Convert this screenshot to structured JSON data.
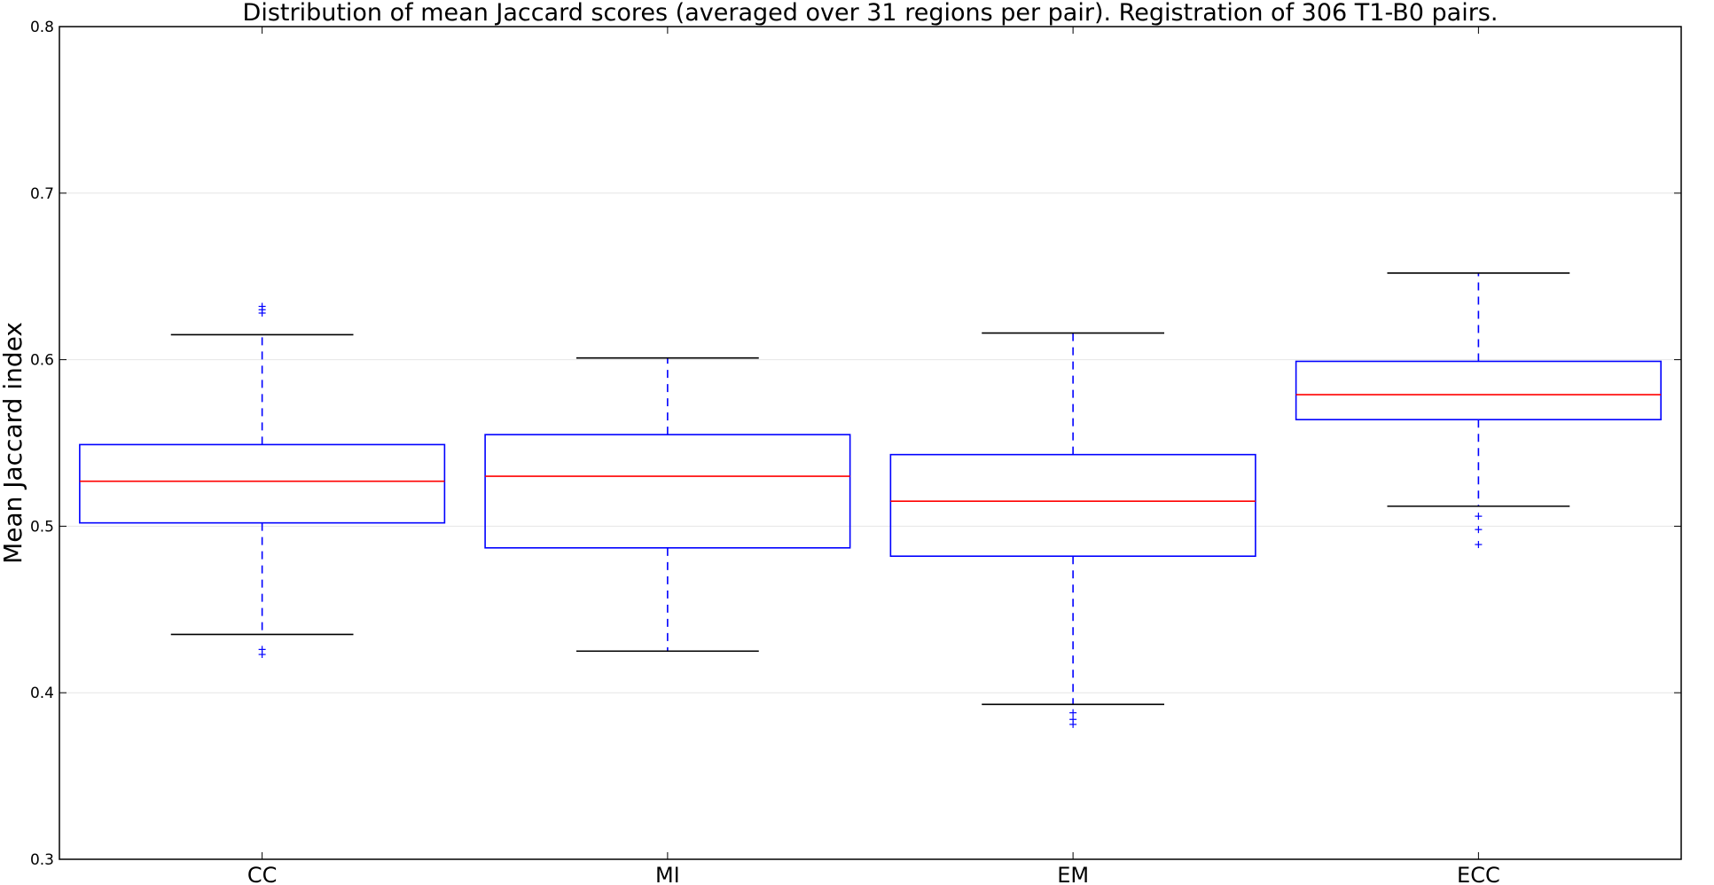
{
  "chart_data": {
    "type": "box",
    "title": "Distribution of mean Jaccard scores (averaged over 31 regions per pair). Registration of 306 T1-B0 pairs.",
    "xlabel": "",
    "ylabel": "Mean Jaccard index",
    "ylim": [
      0.3,
      0.8
    ],
    "yticks": [
      "0.3",
      "0.4",
      "0.5",
      "0.6",
      "0.7",
      "0.8"
    ],
    "grid": "horizontal",
    "colors": {
      "box": "#0000ff",
      "median": "#ff0000",
      "cap": "#000000",
      "flier": "#0000ff",
      "grid": "#e6e6e6"
    },
    "categories": [
      "CC",
      "MI",
      "EM",
      "ECC"
    ],
    "boxes": [
      {
        "label": "CC",
        "whisker_low": 0.435,
        "q1": 0.502,
        "median": 0.527,
        "q3": 0.549,
        "whisker_high": 0.615,
        "outliers": [
          0.423,
          0.426,
          0.628,
          0.63,
          0.632
        ]
      },
      {
        "label": "MI",
        "whisker_low": 0.425,
        "q1": 0.487,
        "median": 0.53,
        "q3": 0.555,
        "whisker_high": 0.601,
        "outliers": []
      },
      {
        "label": "EM",
        "whisker_low": 0.393,
        "q1": 0.482,
        "median": 0.515,
        "q3": 0.543,
        "whisker_high": 0.616,
        "outliers": [
          0.381,
          0.384,
          0.388
        ]
      },
      {
        "label": "ECC",
        "whisker_low": 0.512,
        "q1": 0.564,
        "median": 0.579,
        "q3": 0.599,
        "whisker_high": 0.652,
        "outliers": [
          0.489,
          0.498,
          0.506
        ]
      }
    ]
  }
}
